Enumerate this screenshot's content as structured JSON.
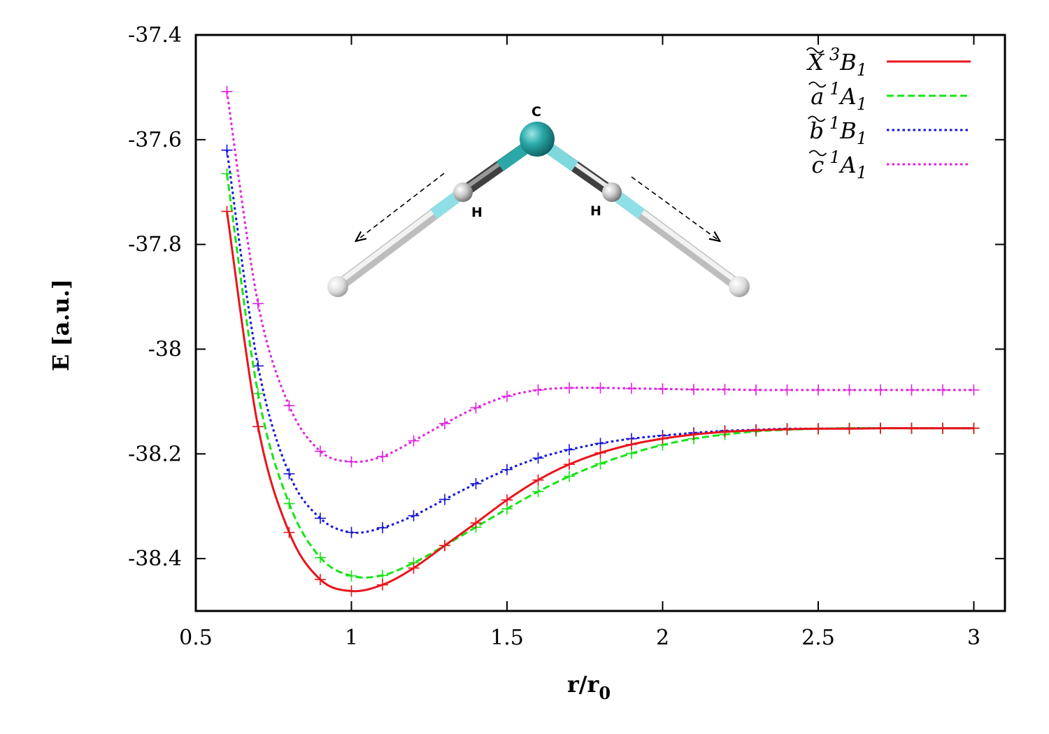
{
  "chart_data": {
    "type": "line",
    "title": "",
    "xlabel": "r/r",
    "xlabel_subscript": "0",
    "ylabel": "E [a.u.]",
    "xlim": [
      0.5,
      3.1
    ],
    "ylim": [
      -38.5,
      -37.4
    ],
    "xticks": [
      0.5,
      1,
      1.5,
      2,
      2.5,
      3
    ],
    "xtick_labels": [
      "0.5",
      "1",
      "1.5",
      "2",
      "2.5",
      "3"
    ],
    "yticks": [
      -37.4,
      -37.6,
      -37.8,
      -38,
      -38.2,
      -38.4
    ],
    "ytick_labels": [
      "-37.4",
      "-37.6",
      "-37.8",
      "-38",
      "-38.2",
      "-38.4"
    ],
    "legend_position": "top-right",
    "series": [
      {
        "name": "X 3B1",
        "label_letter": "X",
        "label_super": "3",
        "label_sym": "B",
        "label_sub": "1",
        "color": "#e8141c",
        "dash": "solid",
        "marker": "+",
        "x": [
          0.6,
          0.7,
          0.8,
          0.9,
          1.0,
          1.1,
          1.2,
          1.3,
          1.4,
          1.5,
          1.6,
          1.7,
          1.8,
          1.9,
          2.0,
          2.1,
          2.2,
          2.3,
          2.4,
          2.5,
          2.6,
          2.7,
          2.8,
          2.9,
          3.0
        ],
        "y": [
          -37.737,
          -38.148,
          -38.35,
          -38.44,
          -38.462,
          -38.45,
          -38.418,
          -38.375,
          -38.332,
          -38.288,
          -38.25,
          -38.22,
          -38.198,
          -38.182,
          -38.171,
          -38.163,
          -38.158,
          -38.155,
          -38.153,
          -38.152,
          -38.152,
          -38.151,
          -38.151,
          -38.151,
          -38.151
        ]
      },
      {
        "name": "a 1A1",
        "label_letter": "a",
        "label_super": "1",
        "label_sym": "A",
        "label_sub": "1",
        "color": "#17e417",
        "dash": "dashed",
        "marker": "+",
        "x": [
          0.6,
          0.7,
          0.8,
          0.9,
          1.0,
          1.1,
          1.2,
          1.3,
          1.4,
          1.5,
          1.6,
          1.7,
          1.8,
          1.9,
          2.0,
          2.1,
          2.2,
          2.3,
          2.4,
          2.5,
          2.6,
          2.7,
          2.8,
          2.9,
          3.0
        ],
        "y": [
          -37.665,
          -38.085,
          -38.295,
          -38.398,
          -38.433,
          -38.432,
          -38.408,
          -38.375,
          -38.34,
          -38.305,
          -38.272,
          -38.243,
          -38.219,
          -38.199,
          -38.183,
          -38.171,
          -38.163,
          -38.157,
          -38.154,
          -38.152,
          -38.151,
          -38.151,
          -38.151,
          -38.151,
          -38.151
        ]
      },
      {
        "name": "b 1B1",
        "label_letter": "b",
        "label_super": "1",
        "label_sym": "B",
        "label_sub": "1",
        "color": "#1414d8",
        "dash": "dotted",
        "marker": "+",
        "x": [
          0.6,
          0.7,
          0.8,
          0.9,
          1.0,
          1.1,
          1.2,
          1.3,
          1.4,
          1.5,
          1.6,
          1.7,
          1.8,
          1.9,
          2.0,
          2.1,
          2.2,
          2.3,
          2.4,
          2.5,
          2.6,
          2.7,
          2.8,
          2.9,
          3.0
        ],
        "y": [
          -37.62,
          -38.032,
          -38.238,
          -38.323,
          -38.35,
          -38.341,
          -38.318,
          -38.287,
          -38.257,
          -38.23,
          -38.208,
          -38.192,
          -38.18,
          -38.171,
          -38.165,
          -38.16,
          -38.156,
          -38.154,
          -38.152,
          -38.152,
          -38.151,
          -38.151,
          -38.151,
          -38.151,
          -38.151
        ]
      },
      {
        "name": "c 1A1",
        "label_letter": "c",
        "label_super": "1",
        "label_sym": "A",
        "label_sub": "1",
        "color": "#e020e0",
        "dash": "dotted",
        "marker": "+",
        "x": [
          0.6,
          0.7,
          0.8,
          0.9,
          1.0,
          1.1,
          1.2,
          1.3,
          1.4,
          1.5,
          1.6,
          1.7,
          1.8,
          1.9,
          2.0,
          2.1,
          2.2,
          2.3,
          2.4,
          2.5,
          2.6,
          2.7,
          2.8,
          2.9,
          3.0
        ],
        "y": [
          -37.508,
          -37.913,
          -38.108,
          -38.195,
          -38.215,
          -38.205,
          -38.175,
          -38.142,
          -38.112,
          -38.09,
          -38.078,
          -38.074,
          -38.074,
          -38.075,
          -38.076,
          -38.077,
          -38.077,
          -38.078,
          -38.078,
          -38.078,
          -38.078,
          -38.078,
          -38.078,
          -38.078,
          -38.078
        ]
      }
    ],
    "inset": {
      "description_labels": [
        "C",
        "H",
        "H"
      ]
    }
  }
}
